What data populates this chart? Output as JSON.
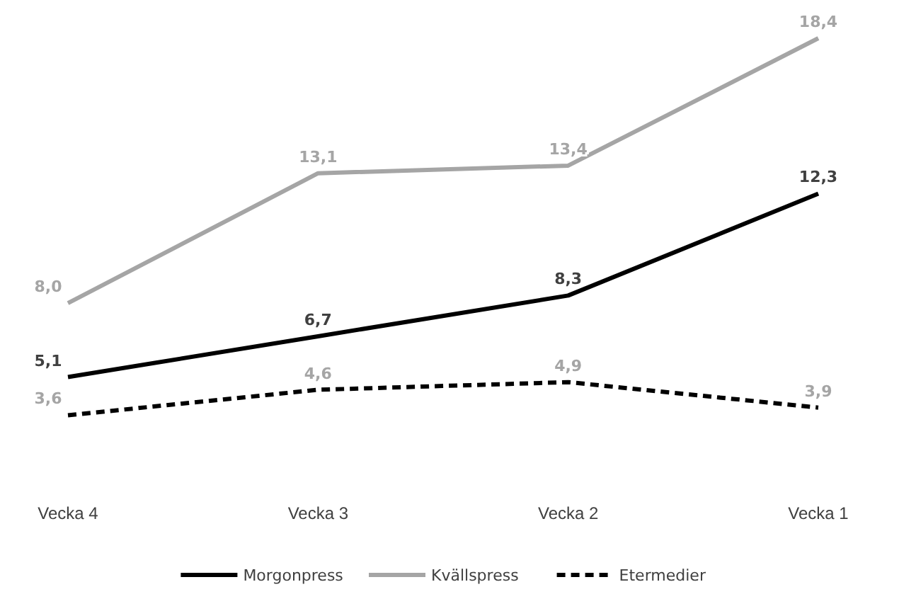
{
  "chart_data": {
    "type": "line",
    "categories": [
      "Vecka 4",
      "Vecka 3",
      "Vecka 2",
      "Vecka 1"
    ],
    "series": [
      {
        "name": "Morgonpress",
        "color": "#000000",
        "values": [
          5.1,
          6.7,
          8.3,
          12.3
        ],
        "value_labels": [
          "5,1",
          "6,7",
          "8,3",
          "12,3"
        ],
        "line_style": "solid"
      },
      {
        "name": "Kvällspress",
        "color": "#a5a5a5",
        "values": [
          8.0,
          13.1,
          13.4,
          18.4
        ],
        "value_labels": [
          "8,0",
          "13,1",
          "13,4",
          "18,4"
        ],
        "line_style": "solid"
      },
      {
        "name": "Etermedier",
        "color": "#000000",
        "values": [
          3.6,
          4.6,
          4.9,
          3.9
        ],
        "value_labels": [
          "3,6",
          "4,6",
          "4,9",
          "3,9"
        ],
        "line_style": "dashed"
      }
    ],
    "legend": "bottom",
    "marker": "none",
    "tick_labels": "x"
  }
}
